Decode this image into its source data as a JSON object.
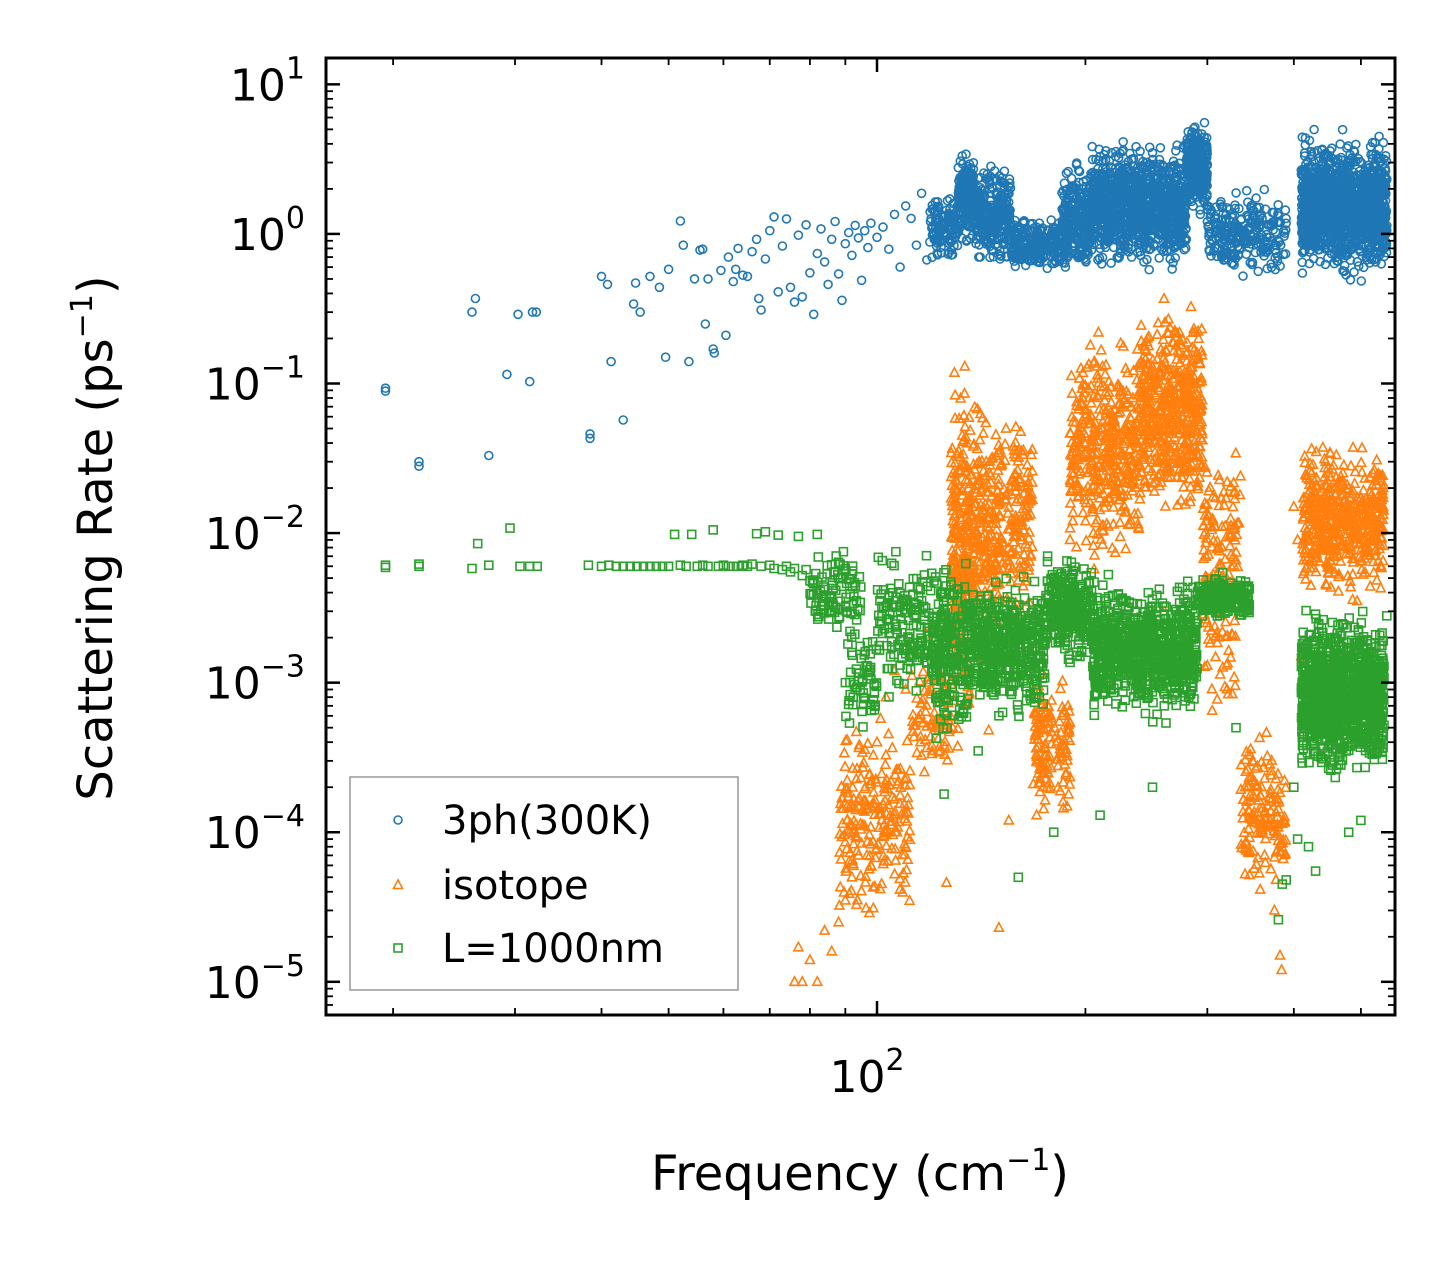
{
  "chart_data": {
    "type": "scatter",
    "title": "",
    "xlabel": "Frequency (cm",
    "xlabel_sup": "−1",
    "xlabel_close": ")",
    "ylabel": "Scattering Rate (ps",
    "ylabel_sup": "−1",
    "ylabel_close": ")",
    "xscale": "log",
    "yscale": "log",
    "xlim": [
      16,
      560
    ],
    "ylim": [
      6e-06,
      15
    ],
    "x_ticks": [
      {
        "value": 100,
        "base": "10",
        "exp": "2"
      }
    ],
    "y_ticks": [
      {
        "value": 10,
        "base": "10",
        "exp": "1"
      },
      {
        "value": 1,
        "base": "10",
        "exp": "0"
      },
      {
        "value": 0.1,
        "base": "10",
        "exp": "−1"
      },
      {
        "value": 0.01,
        "base": "10",
        "exp": "−2"
      },
      {
        "value": 0.001,
        "base": "10",
        "exp": "−3"
      },
      {
        "value": 0.0001,
        "base": "10",
        "exp": "−4"
      },
      {
        "value": 1e-05,
        "base": "10",
        "exp": "−5"
      }
    ],
    "legend_position": "lower-left",
    "series": [
      {
        "name": "3ph(300K)",
        "color": "#1f77b4",
        "marker": "circle",
        "points": [
          [
            19.5,
            0.093
          ],
          [
            19.5,
            0.089
          ],
          [
            21.8,
            0.03
          ],
          [
            21.8,
            0.028
          ],
          [
            26,
            0.3
          ],
          [
            26.3,
            0.37
          ],
          [
            27.5,
            0.033
          ],
          [
            29.2,
            0.115
          ],
          [
            30.3,
            0.29
          ],
          [
            31.5,
            0.103
          ],
          [
            31.8,
            0.3
          ],
          [
            32.2,
            0.3
          ],
          [
            38.5,
            0.046
          ],
          [
            38.5,
            0.043
          ],
          [
            40,
            0.52
          ],
          [
            40.8,
            0.46
          ],
          [
            41.3,
            0.14
          ],
          [
            43,
            0.057
          ],
          [
            44.5,
            0.34
          ],
          [
            44.8,
            0.47
          ],
          [
            45.5,
            0.3
          ],
          [
            47,
            0.52
          ],
          [
            48.5,
            0.44
          ],
          [
            49.5,
            0.15
          ],
          [
            50,
            0.58
          ],
          [
            52,
            1.22
          ],
          [
            52.5,
            0.84
          ],
          [
            53.5,
            0.14
          ],
          [
            54.5,
            0.5
          ],
          [
            55.5,
            0.78
          ],
          [
            56,
            0.79
          ],
          [
            56.5,
            0.25
          ],
          [
            57,
            0.5
          ],
          [
            58,
            0.17
          ],
          [
            58.2,
            0.16
          ],
          [
            59.5,
            0.57
          ],
          [
            60.5,
            0.21
          ],
          [
            61,
            0.7
          ],
          [
            62,
            0.48
          ],
          [
            62.5,
            0.58
          ],
          [
            63,
            0.8
          ],
          [
            64,
            0.53
          ],
          [
            65,
            0.52
          ],
          [
            66,
            0.76
          ],
          [
            67,
            0.92
          ],
          [
            67.5,
            0.37
          ],
          [
            68,
            0.31
          ],
          [
            69,
            0.68
          ],
          [
            70,
            1.05
          ],
          [
            71,
            1.3
          ],
          [
            72,
            0.41
          ],
          [
            73,
            0.83
          ],
          [
            74,
            1.26
          ],
          [
            75,
            0.44
          ],
          [
            76,
            0.35
          ],
          [
            77,
            0.98
          ],
          [
            78,
            0.38
          ],
          [
            79,
            1.15
          ],
          [
            80,
            0.55
          ],
          [
            81,
            0.29
          ],
          [
            82,
            0.74
          ],
          [
            83,
            1.08
          ],
          [
            84,
            0.65
          ],
          [
            85,
            0.46
          ],
          [
            86,
            0.92
          ],
          [
            87,
            1.21
          ],
          [
            88,
            0.54
          ],
          [
            89,
            0.36
          ],
          [
            90,
            0.86
          ],
          [
            91,
            1.02
          ],
          [
            92,
            0.72
          ],
          [
            93,
            1.14
          ],
          [
            94,
            0.94
          ],
          [
            95,
            0.49
          ],
          [
            96,
            1.05
          ],
          [
            97,
            0.81
          ],
          [
            98,
            1.18
          ],
          [
            100,
            0.95
          ],
          [
            102,
            1.11
          ],
          [
            104,
            0.79
          ],
          [
            106,
            1.35
          ],
          [
            108,
            0.6
          ],
          [
            110,
            1.54
          ],
          [
            112,
            1.27
          ],
          [
            114,
            0.84
          ],
          [
            116,
            1.87
          ],
          [
            118,
            0.67
          ]
        ],
        "clusters": [
          {
            "x": [
              119,
              131
            ],
            "y": [
              0.6,
              2.0
            ],
            "n": 120
          },
          {
            "x": [
              131,
              138
            ],
            "y": [
              0.8,
              4.0
            ],
            "n": 200
          },
          {
            "x": [
              138,
              156
            ],
            "y": [
              0.55,
              3.2
            ],
            "n": 280
          },
          {
            "x": [
              156,
              185
            ],
            "y": [
              0.5,
              1.4
            ],
            "n": 230
          },
          {
            "x": [
              185,
              203
            ],
            "y": [
              0.45,
              3.4
            ],
            "n": 250
          },
          {
            "x": [
              203,
              280
            ],
            "y": [
              0.5,
              4.8
            ],
            "n": 1050
          },
          {
            "x": [
              280,
              300
            ],
            "y": [
              1.2,
              6.5
            ],
            "n": 320
          },
          {
            "x": [
              300,
              390
            ],
            "y": [
              0.45,
              2.2
            ],
            "n": 260
          },
          {
            "x": [
              410,
              545
            ],
            "y": [
              0.45,
              5.2
            ],
            "n": 1350
          }
        ]
      },
      {
        "name": "isotope",
        "color": "#ff7f0e",
        "marker": "triangle",
        "points": [
          [
            76,
            1e-05
          ],
          [
            77,
            1.7e-05
          ],
          [
            78,
            1e-05
          ],
          [
            80,
            1.4e-05
          ],
          [
            82,
            1e-05
          ],
          [
            84,
            2.2e-05
          ],
          [
            86,
            1.6e-05
          ],
          [
            88,
            2.5e-05
          ],
          [
            90,
            3.5e-05
          ],
          [
            92,
            5e-05
          ],
          [
            94,
            7e-05
          ],
          [
            96,
            0.00011
          ],
          [
            98,
            0.00022
          ],
          [
            100,
            0.0004
          ],
          [
            103,
            0.0008
          ],
          [
            106,
            0.0012
          ],
          [
            110,
            0.0009
          ],
          [
            114,
            0.0016
          ],
          [
            118,
            0.0021
          ],
          [
            122,
            0.0013
          ],
          [
            126,
            4.6e-05
          ],
          [
            128,
            0.003
          ],
          [
            145,
            0.00048
          ],
          [
            150,
            2.3e-05
          ],
          [
            155,
            0.00012
          ],
          [
            158,
            0.003
          ],
          [
            165,
            0.008
          ],
          [
            170,
            0.00013
          ],
          [
            190,
            0.009
          ],
          [
            200,
            0.012
          ],
          [
            232,
            0.002
          ],
          [
            260,
            0.003
          ],
          [
            300,
            0.0013
          ],
          [
            320,
            0.0032
          ],
          [
            340,
            0.0002
          ],
          [
            360,
            0.0001
          ],
          [
            375,
            3e-05
          ],
          [
            382,
            1.5e-05
          ],
          [
            384,
            1.2e-05
          ],
          [
            400,
            0.015
          ],
          [
            405,
            0.009
          ],
          [
            410,
            0.0015
          ],
          [
            520,
            0.0008
          ]
        ],
        "clusters": [
          {
            "x": [
              88,
              112
            ],
            "y": [
              2e-05,
              0.0008
            ],
            "n": 220
          },
          {
            "x": [
              112,
              128
            ],
            "y": [
              0.0002,
              0.002
            ],
            "n": 80
          },
          {
            "x": [
              128,
              136
            ],
            "y": [
              0.0002,
              0.19
            ],
            "n": 260
          },
          {
            "x": [
              136,
              150
            ],
            "y": [
              0.0008,
              0.11
            ],
            "n": 220
          },
          {
            "x": [
              150,
              168
            ],
            "y": [
              0.002,
              0.08
            ],
            "n": 160
          },
          {
            "x": [
              168,
              190
            ],
            "y": [
              8e-05,
              0.002
            ],
            "n": 140
          },
          {
            "x": [
              190,
              240
            ],
            "y": [
              0.005,
              0.28
            ],
            "n": 420
          },
          {
            "x": [
              240,
              295
            ],
            "y": [
              0.01,
              0.45
            ],
            "n": 520
          },
          {
            "x": [
              295,
              335
            ],
            "y": [
              0.0004,
              0.07
            ],
            "n": 160
          },
          {
            "x": [
              335,
              390
            ],
            "y": [
              3e-05,
              0.0006
            ],
            "n": 150
          },
          {
            "x": [
              412,
              540
            ],
            "y": [
              0.003,
              0.05
            ],
            "n": 520
          }
        ]
      },
      {
        "name": "L=1000nm",
        "color": "#2ca02c",
        "marker": "square",
        "points": [
          [
            19.5,
            0.0061
          ],
          [
            19.5,
            0.0059
          ],
          [
            21.8,
            0.0062
          ],
          [
            21.8,
            0.006
          ],
          [
            26,
            0.0058
          ],
          [
            26.5,
            0.0085
          ],
          [
            27.5,
            0.0061
          ],
          [
            29.5,
            0.0108
          ],
          [
            30.5,
            0.006
          ],
          [
            31.5,
            0.006
          ],
          [
            32.3,
            0.006
          ],
          [
            38.3,
            0.0061
          ],
          [
            40,
            0.006
          ],
          [
            41,
            0.0061
          ],
          [
            42,
            0.006
          ],
          [
            43,
            0.006
          ],
          [
            44,
            0.006
          ],
          [
            45,
            0.006
          ],
          [
            46,
            0.006
          ],
          [
            47,
            0.006
          ],
          [
            48,
            0.006
          ],
          [
            49,
            0.006
          ],
          [
            50,
            0.006
          ],
          [
            51,
            0.0098
          ],
          [
            52,
            0.0061
          ],
          [
            53,
            0.006
          ],
          [
            54,
            0.0098
          ],
          [
            55,
            0.006
          ],
          [
            56,
            0.0061
          ],
          [
            57,
            0.006
          ],
          [
            58,
            0.0105
          ],
          [
            59,
            0.006
          ],
          [
            60,
            0.0061
          ],
          [
            61,
            0.006
          ],
          [
            62,
            0.006
          ],
          [
            63,
            0.006
          ],
          [
            64,
            0.0061
          ],
          [
            65,
            0.006
          ],
          [
            66,
            0.0062
          ],
          [
            67,
            0.0099
          ],
          [
            68,
            0.006
          ],
          [
            69,
            0.0102
          ],
          [
            70,
            0.0061
          ],
          [
            71,
            0.0058
          ],
          [
            72,
            0.0097
          ],
          [
            73,
            0.0057
          ],
          [
            74,
            0.006
          ],
          [
            75,
            0.0055
          ],
          [
            76,
            0.0058
          ],
          [
            77,
            0.0095
          ],
          [
            78,
            0.0052
          ],
          [
            79,
            0.0057
          ],
          [
            80,
            0.0048
          ],
          [
            82,
            0.0098
          ],
          [
            84,
            0.0042
          ],
          [
            86,
            0.0038
          ],
          [
            88,
            0.005
          ],
          [
            90,
            0.0032
          ],
          [
            125,
            0.00018
          ],
          [
            140,
            0.00035
          ],
          [
            150,
            0.0006
          ],
          [
            160,
            5e-05
          ],
          [
            180,
            0.0001
          ],
          [
            210,
            0.00013
          ],
          [
            250,
            0.0002
          ],
          [
            260,
            0.0007
          ],
          [
            330,
            0.0005
          ],
          [
            380,
            2.6e-05
          ],
          [
            385,
            4.5e-05
          ],
          [
            390,
            4.8e-05
          ],
          [
            400,
            0.0002
          ],
          [
            405,
            9e-05
          ],
          [
            420,
            8e-05
          ],
          [
            430,
            5.5e-05
          ],
          [
            480,
            0.0001
          ],
          [
            500,
            0.00012
          ],
          [
            530,
            0.00042
          ],
          [
            545,
            0.0028
          ]
        ],
        "clusters": [
          {
            "x": [
              80,
              95
            ],
            "y": [
              0.0018,
              0.0095
            ],
            "n": 90
          },
          {
            "x": [
              90,
              100
            ],
            "y": [
              0.0004,
              0.003
            ],
            "n": 60
          },
          {
            "x": [
              100,
              120
            ],
            "y": [
              0.0006,
              0.009
            ],
            "n": 150
          },
          {
            "x": [
              120,
              135
            ],
            "y": [
              0.0003,
              0.009
            ],
            "n": 220
          },
          {
            "x": [
              135,
              175
            ],
            "y": [
              0.0005,
              0.006
            ],
            "n": 500
          },
          {
            "x": [
              175,
              205
            ],
            "y": [
              0.0012,
              0.008
            ],
            "n": 280
          },
          {
            "x": [
              205,
              290
            ],
            "y": [
              0.0005,
              0.0055
            ],
            "n": 850
          },
          {
            "x": [
              290,
              345
            ],
            "y": [
              0.0025,
              0.0055
            ],
            "n": 220
          },
          {
            "x": [
              410,
              540
            ],
            "y": [
              0.0002,
              0.0035
            ],
            "n": 1100
          }
        ]
      }
    ]
  }
}
